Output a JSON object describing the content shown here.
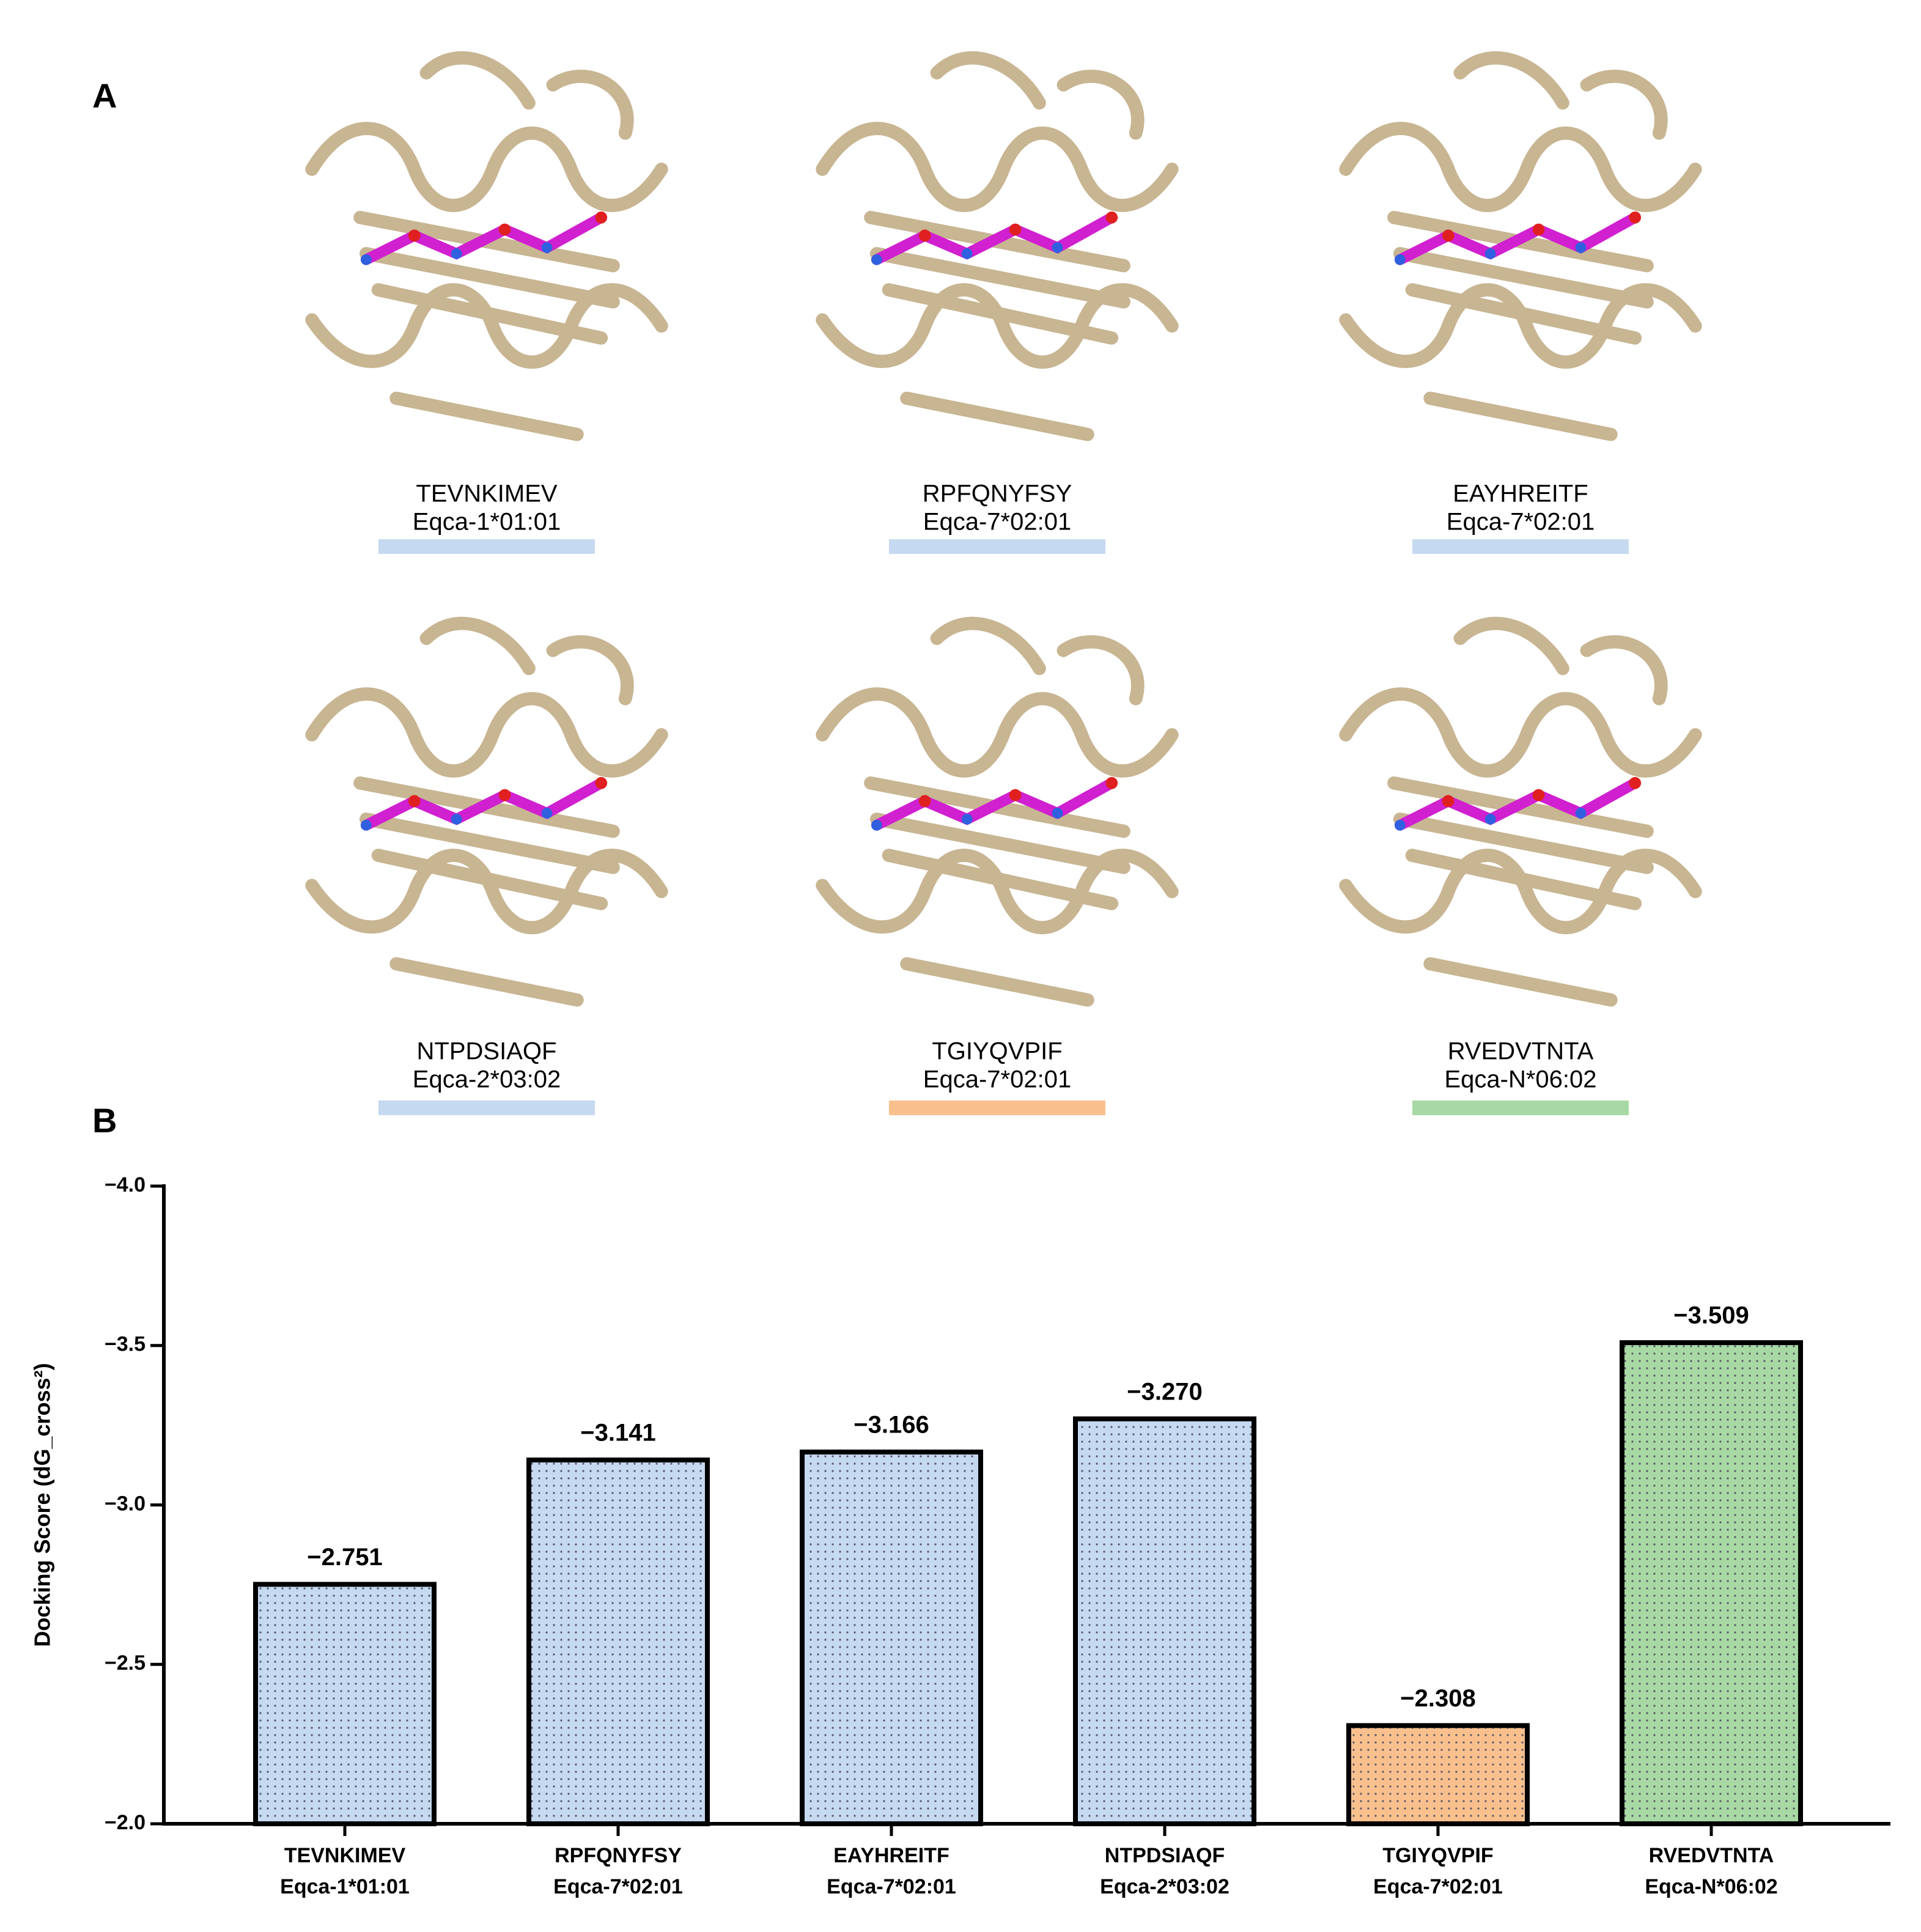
{
  "panel_labels": {
    "a": "A",
    "b": "B"
  },
  "structures": [
    {
      "peptide": "TEVNKIMEV",
      "allele": "Eqca-1*01:01",
      "color": "#c5d9f0"
    },
    {
      "peptide": "RPFQNYFSY",
      "allele": "Eqca-7*02:01",
      "color": "#c5d9f0"
    },
    {
      "peptide": "EAYHREITF",
      "allele": "Eqca-7*02:01",
      "color": "#c5d9f0"
    },
    {
      "peptide": "NTPDSIAQF",
      "allele": "Eqca-2*03:02",
      "color": "#c5d9f0"
    },
    {
      "peptide": "TGIYQVPIF",
      "allele": "Eqca-7*02:01",
      "color": "#f9c08d"
    },
    {
      "peptide": "RVEDVTNTA",
      "allele": "Eqca-N*06:02",
      "color": "#a8d9a4"
    }
  ],
  "chart_data": {
    "type": "bar",
    "y_label": "Docking Score (dG_cross²)",
    "categories": [
      "TEVNKIMEV",
      "RPFQNYFSY",
      "EAYHREITF",
      "NTPDSIAQF",
      "TGIYQVPIF",
      "RVEDVTNTA"
    ],
    "category_alleles": [
      "Eqca-1*01:01",
      "Eqca-7*02:01",
      "Eqca-7*02:01",
      "Eqca-2*03:02",
      "Eqca-7*02:01",
      "Eqca-N*06:02"
    ],
    "values": [
      -2.751,
      -3.141,
      -3.166,
      -3.27,
      -2.308,
      -3.509
    ],
    "value_labels": [
      "−2.751",
      "−3.141",
      "−3.166",
      "−3.270",
      "−2.308",
      "−3.509"
    ],
    "colors": [
      "#c5d9f0",
      "#c5d9f0",
      "#c5d9f0",
      "#c5d9f0",
      "#f9c08d",
      "#a8d9a4"
    ],
    "ylim": [
      -2.0,
      -4.0
    ],
    "yticks": [
      {
        "value": -2.0,
        "label": "−2.0"
      },
      {
        "value": -2.5,
        "label": "−2.5"
      },
      {
        "value": -3.0,
        "label": "−3.0"
      },
      {
        "value": -3.5,
        "label": "−3.5"
      },
      {
        "value": -4.0,
        "label": "−4.0"
      }
    ]
  }
}
